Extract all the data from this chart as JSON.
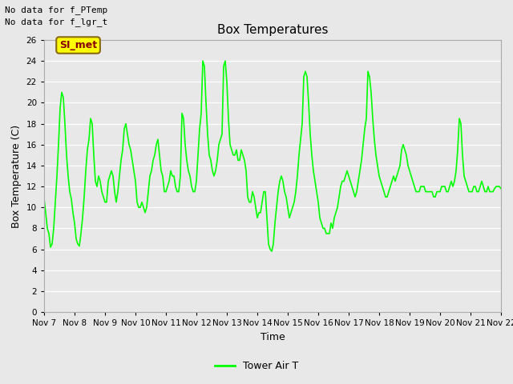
{
  "title": "Box Temperatures",
  "xlabel": "Time",
  "ylabel": "Box Temperature (C)",
  "no_data_text": [
    "No data for f_PTemp",
    "No data for f_lgr_t"
  ],
  "label_box": "SI_met",
  "legend_label": "Tower Air T",
  "line_color": "#00FF00",
  "background_color": "#E8E8E8",
  "ylim": [
    0,
    26
  ],
  "yticks": [
    0,
    2,
    4,
    6,
    8,
    10,
    12,
    14,
    16,
    18,
    20,
    22,
    24,
    26
  ],
  "x_tick_labels": [
    "Nov 7",
    "Nov 8",
    "Nov 9",
    "Nov 10",
    "Nov 11",
    "Nov 12",
    "Nov 13",
    "Nov 14",
    "Nov 15",
    "Nov 16",
    "Nov 17",
    "Nov 18",
    "Nov 19",
    "Nov 20",
    "Nov 21",
    "Nov 22"
  ],
  "temperatures": [
    10.8,
    9.5,
    8.0,
    7.5,
    6.2,
    6.5,
    8.0,
    10.5,
    13.0,
    16.0,
    19.5,
    21.0,
    20.5,
    18.0,
    15.0,
    13.0,
    11.5,
    10.8,
    9.5,
    8.5,
    7.0,
    6.5,
    6.3,
    7.5,
    9.0,
    11.0,
    13.5,
    15.5,
    16.5,
    18.5,
    18.0,
    15.0,
    12.5,
    12.0,
    13.0,
    12.5,
    11.5,
    11.0,
    10.5,
    10.5,
    12.5,
    13.0,
    13.5,
    13.0,
    11.5,
    10.5,
    11.5,
    13.0,
    14.5,
    15.5,
    17.5,
    18.0,
    17.0,
    16.0,
    15.5,
    14.5,
    13.5,
    12.5,
    10.5,
    10.0,
    10.0,
    10.5,
    10.0,
    9.5,
    10.0,
    11.5,
    13.0,
    13.5,
    14.5,
    15.0,
    16.0,
    16.5,
    15.0,
    13.5,
    13.0,
    11.5,
    11.5,
    12.0,
    12.5,
    13.5,
    13.0,
    13.0,
    12.0,
    11.5,
    11.5,
    13.0,
    19.0,
    18.5,
    16.0,
    14.5,
    13.5,
    13.0,
    12.0,
    11.5,
    11.5,
    12.5,
    15.0,
    17.5,
    19.0,
    24.0,
    23.5,
    20.0,
    17.0,
    15.0,
    14.5,
    13.5,
    13.0,
    13.5,
    14.5,
    16.0,
    16.5,
    17.0,
    23.5,
    24.0,
    22.0,
    18.5,
    16.0,
    15.5,
    15.0,
    15.0,
    15.5,
    14.5,
    14.5,
    15.5,
    15.0,
    14.5,
    13.5,
    11.0,
    10.5,
    10.5,
    11.5,
    11.0,
    10.0,
    9.0,
    9.5,
    9.5,
    10.5,
    11.5,
    11.5,
    9.0,
    6.5,
    6.0,
    5.8,
    6.5,
    8.5,
    10.0,
    11.5,
    12.5,
    13.0,
    12.5,
    11.5,
    11.0,
    10.0,
    9.0,
    9.5,
    10.0,
    10.5,
    11.5,
    13.0,
    15.0,
    16.5,
    18.0,
    22.5,
    23.0,
    22.5,
    20.0,
    17.0,
    15.0,
    13.5,
    12.5,
    11.5,
    10.5,
    9.0,
    8.5,
    8.0,
    8.0,
    7.5,
    7.5,
    7.5,
    8.5,
    8.0,
    9.0,
    9.5,
    10.0,
    11.0,
    12.0,
    12.5,
    12.5,
    13.0,
    13.5,
    13.0,
    12.5,
    12.0,
    11.5,
    11.0,
    11.5,
    12.5,
    13.5,
    14.5,
    16.0,
    17.5,
    18.5,
    23.0,
    22.5,
    21.0,
    18.5,
    16.5,
    15.0,
    14.0,
    13.0,
    12.5,
    12.0,
    11.5,
    11.0,
    11.0,
    11.5,
    12.0,
    12.5,
    13.0,
    12.5,
    13.0,
    13.5,
    14.0,
    15.5,
    16.0,
    15.5,
    15.0,
    14.0,
    13.5,
    13.0,
    12.5,
    12.0,
    11.5,
    11.5,
    11.5,
    12.0,
    12.0,
    12.0,
    11.5,
    11.5,
    11.5,
    11.5,
    11.5,
    11.0,
    11.0,
    11.5,
    11.5,
    11.5,
    12.0,
    12.0,
    12.0,
    11.5,
    11.5,
    12.0,
    12.5,
    12.0,
    12.5,
    13.5,
    15.5,
    18.5,
    18.0,
    15.0,
    13.0,
    12.5,
    12.0,
    11.5,
    11.5,
    11.5,
    12.0,
    12.0,
    11.5,
    11.5,
    12.0,
    12.5,
    12.0,
    11.5,
    11.5,
    12.0,
    11.5,
    11.5,
    11.5,
    11.8,
    12.0,
    12.0,
    12.0,
    11.8
  ]
}
